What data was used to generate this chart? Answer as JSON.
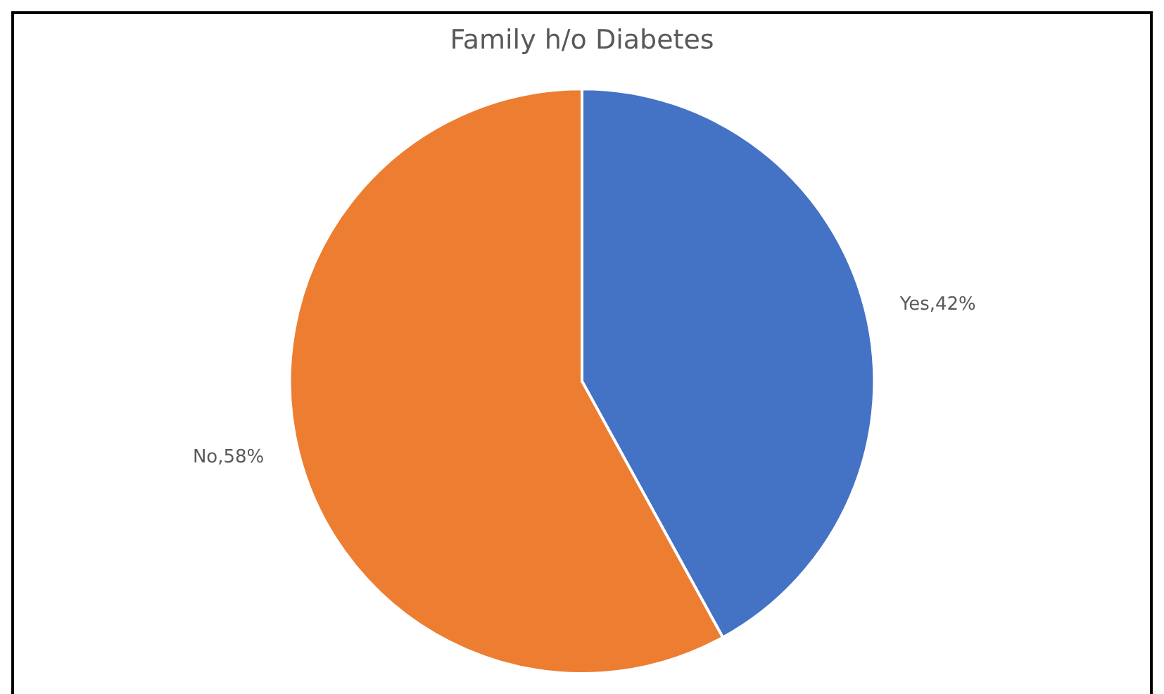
{
  "chart_data": {
    "type": "pie",
    "title": "Family h/o Diabetes",
    "categories": [
      "Yes",
      "No"
    ],
    "values": [
      42,
      58
    ],
    "colors": [
      "#4472c4",
      "#ed7d31"
    ],
    "value_labels": [
      ",42%",
      ",58%"
    ]
  }
}
